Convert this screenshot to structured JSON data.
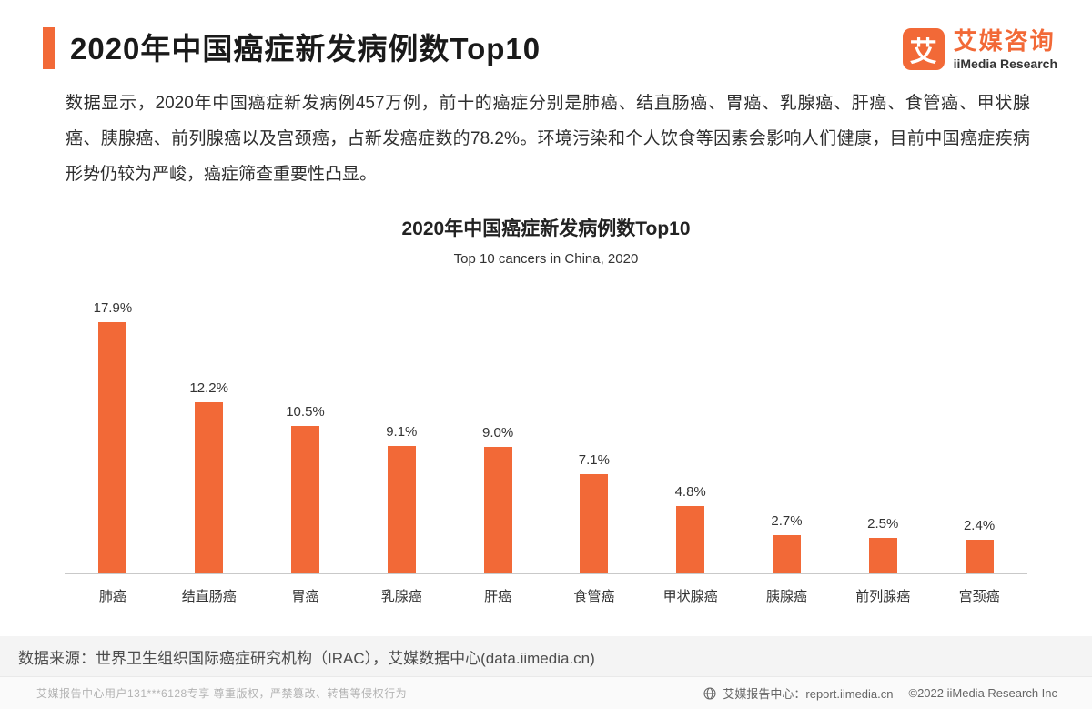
{
  "header": {
    "title": "2020年中国癌症新发病例数Top10",
    "brand": {
      "logo_text": "艾",
      "name": "艾媒咨询",
      "subtitle": "iiMedia Research"
    }
  },
  "intro": {
    "text": "数据显示，2020年中国癌症新发病例457万例，前十的癌症分别是肺癌、结直肠癌、胃癌、乳腺癌、肝癌、食管癌、甲状腺癌、胰腺癌、前列腺癌以及宫颈癌，占新发癌症数的78.2%。环境污染和个人饮食等因素会影响人们健康，目前中国癌症疾病形势仍较为严峻，癌症筛查重要性凸显。"
  },
  "chart_data": {
    "type": "bar",
    "title": "2020年中国癌症新发病例数Top10",
    "subtitle": "Top 10 cancers in China, 2020",
    "categories": [
      "肺癌",
      "结直肠癌",
      "胃癌",
      "乳腺癌",
      "肝癌",
      "食管癌",
      "甲状腺癌",
      "胰腺癌",
      "前列腺癌",
      "宫颈癌"
    ],
    "values": [
      17.9,
      12.2,
      10.5,
      9.1,
      9.0,
      7.1,
      4.8,
      2.7,
      2.5,
      2.4
    ],
    "value_labels": [
      "17.9%",
      "12.2%",
      "10.5%",
      "9.1%",
      "9.0%",
      "7.1%",
      "4.8%",
      "2.7%",
      "2.5%",
      "2.4%"
    ],
    "xlabel": "",
    "ylabel": "",
    "ylim": [
      0,
      20
    ],
    "grid": false,
    "legend": false,
    "bar_color": "#F26937"
  },
  "source_note": "数据来源：世界卫生组织国际癌症研究机构（IRAC），艾媒数据中心(data.iimedia.cn)",
  "footer": {
    "left": "艾媒报告中心用户131***6128专享 尊重版权，严禁篡改、转售等侵权行为",
    "right_site": "艾媒报告中心：report.iimedia.cn",
    "right_copyright": "©2022  iiMedia Research Inc"
  },
  "colors": {
    "accent": "#F26937",
    "axis_line": "#c9c9c9"
  }
}
